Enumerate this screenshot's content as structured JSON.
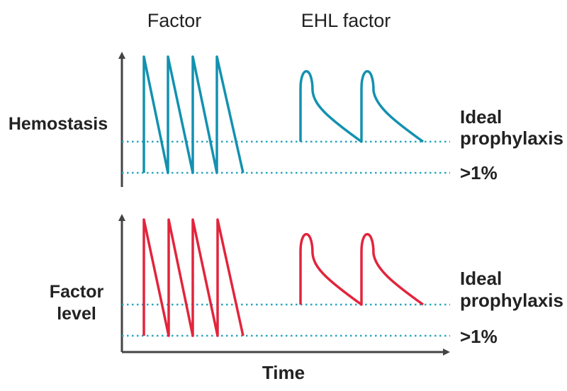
{
  "headers": {
    "factor": "Factor",
    "ehl": "EHL factor"
  },
  "x_axis_label": "Time",
  "top_panel": {
    "y_label": "Hemostasis",
    "threshold_high": [
      "Ideal",
      "prophylaxis"
    ],
    "threshold_low": ">1%"
  },
  "bottom_panel": {
    "y_label": [
      "Factor",
      "level"
    ],
    "threshold_high": [
      "Ideal",
      "prophylaxis"
    ],
    "threshold_low": ">1%"
  },
  "colors": {
    "top_curve": "#1391b0",
    "bottom_curve": "#e2243c",
    "axis": "#444444",
    "threshold_line": "#2aa6bf"
  }
}
